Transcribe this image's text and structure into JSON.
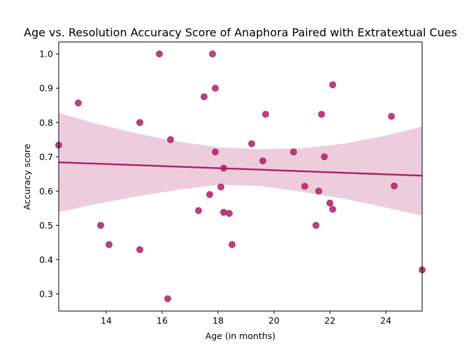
{
  "chart_data": {
    "type": "scatter",
    "title": "Age vs. Resolution Accuracy Score of Anaphora Paired with Extratextual Cues",
    "xlabel": "Age (in months)",
    "ylabel": "Accuracy score",
    "xlim": [
      12.3,
      25.3
    ],
    "ylim": [
      0.25,
      1.035
    ],
    "x_ticks": [
      14,
      16,
      18,
      20,
      22,
      24
    ],
    "y_ticks": [
      0.3,
      0.4,
      0.5,
      0.6,
      0.7,
      0.8,
      0.9,
      1.0
    ],
    "x_tick_labels": [
      "14",
      "16",
      "18",
      "20",
      "22",
      "24"
    ],
    "y_tick_labels": [
      "0.3",
      "0.4",
      "0.5",
      "0.6",
      "0.7",
      "0.8",
      "0.9",
      "1.0"
    ],
    "grid": false,
    "legend": "none",
    "point_color": "#AE1E66",
    "line_color": "#AE1E66",
    "band_color": "#EDCDDC",
    "points": [
      {
        "x": 12.3,
        "y": 0.734
      },
      {
        "x": 13.0,
        "y": 0.857
      },
      {
        "x": 13.8,
        "y": 0.5
      },
      {
        "x": 14.1,
        "y": 0.444
      },
      {
        "x": 15.2,
        "y": 0.8
      },
      {
        "x": 15.2,
        "y": 0.429
      },
      {
        "x": 15.9,
        "y": 1.0
      },
      {
        "x": 16.2,
        "y": 0.286
      },
      {
        "x": 16.3,
        "y": 0.75
      },
      {
        "x": 17.3,
        "y": 0.543
      },
      {
        "x": 17.5,
        "y": 0.875
      },
      {
        "x": 17.7,
        "y": 0.59
      },
      {
        "x": 17.8,
        "y": 1.0
      },
      {
        "x": 17.9,
        "y": 0.9
      },
      {
        "x": 17.9,
        "y": 0.714
      },
      {
        "x": 18.1,
        "y": 0.612
      },
      {
        "x": 18.2,
        "y": 0.667
      },
      {
        "x": 18.2,
        "y": 0.538
      },
      {
        "x": 18.4,
        "y": 0.535
      },
      {
        "x": 18.5,
        "y": 0.444
      },
      {
        "x": 19.2,
        "y": 0.738
      },
      {
        "x": 19.6,
        "y": 0.688
      },
      {
        "x": 19.7,
        "y": 0.824
      },
      {
        "x": 20.7,
        "y": 0.714
      },
      {
        "x": 21.1,
        "y": 0.614
      },
      {
        "x": 21.5,
        "y": 0.5
      },
      {
        "x": 21.6,
        "y": 0.6
      },
      {
        "x": 21.7,
        "y": 0.824
      },
      {
        "x": 21.8,
        "y": 0.7
      },
      {
        "x": 22.0,
        "y": 0.565
      },
      {
        "x": 22.1,
        "y": 0.91
      },
      {
        "x": 22.1,
        "y": 0.547
      },
      {
        "x": 24.2,
        "y": 0.818
      },
      {
        "x": 24.3,
        "y": 0.615
      },
      {
        "x": 25.3,
        "y": 0.37
      }
    ],
    "regression_line": [
      {
        "x": 12.3,
        "y": 0.684
      },
      {
        "x": 25.3,
        "y": 0.645
      }
    ],
    "confidence_band": [
      {
        "x": 12.3,
        "lower": 0.538,
        "upper": 0.828
      },
      {
        "x": 13.5,
        "lower": 0.56,
        "upper": 0.8
      },
      {
        "x": 15.0,
        "lower": 0.583,
        "upper": 0.77
      },
      {
        "x": 16.5,
        "lower": 0.603,
        "upper": 0.745
      },
      {
        "x": 18.0,
        "lower": 0.618,
        "upper": 0.728
      },
      {
        "x": 19.5,
        "lower": 0.615,
        "upper": 0.722
      },
      {
        "x": 21.0,
        "lower": 0.598,
        "upper": 0.725
      },
      {
        "x": 22.5,
        "lower": 0.578,
        "upper": 0.738
      },
      {
        "x": 24.0,
        "lower": 0.552,
        "upper": 0.762
      },
      {
        "x": 25.3,
        "lower": 0.528,
        "upper": 0.788
      }
    ]
  }
}
